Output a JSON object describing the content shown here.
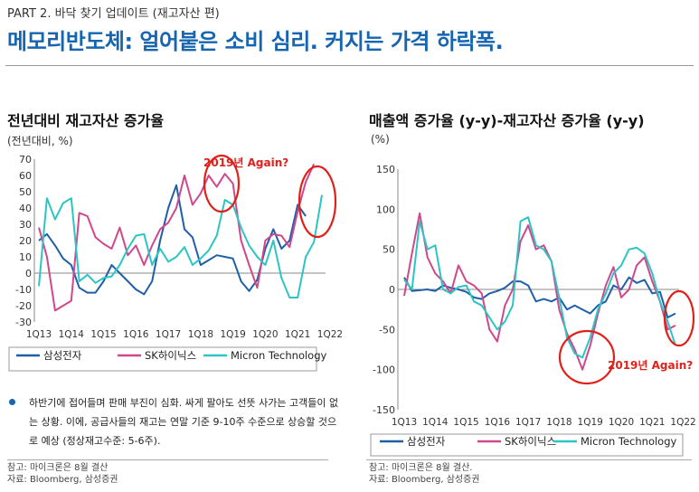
{
  "header": {
    "part": "PART 2. 바닥 찾기 업데이트 (재고자산 편)",
    "headline": "메모리반도체: 얼어붙은 소비 심리. 커지는 가격 하락폭."
  },
  "colors": {
    "samsung": "#1f5fa8",
    "skhynix": "#d0478c",
    "micron": "#2cc5c4",
    "annotation": "#e0201b",
    "accent": "#1565b0"
  },
  "chart_data": [
    {
      "type": "line",
      "title": "전년대비 재고자산 증가율",
      "ylabel": "(전년대비, %)",
      "ylim": [
        -30,
        70
      ],
      "yticks": [
        "-30",
        "-20",
        "-10",
        "0",
        "10",
        "20",
        "30",
        "40",
        "50",
        "60",
        "70"
      ],
      "xticks": [
        "1Q13",
        "1Q14",
        "1Q15",
        "1Q16",
        "1Q17",
        "1Q18",
        "1Q19",
        "1Q20",
        "1Q21",
        "1Q22"
      ],
      "grid": false,
      "legend": "bottom",
      "annotation": "2019년 Again?",
      "series": [
        {
          "name": "삼성전자",
          "values": [
            20,
            24,
            17,
            9,
            5,
            -9,
            -12,
            -12,
            -5,
            5,
            0,
            -5,
            -10,
            -13,
            -5,
            20,
            40,
            54,
            27,
            22,
            5,
            8,
            11,
            10,
            9,
            -5,
            -11,
            -4,
            15,
            27,
            15,
            20,
            42,
            35,
            null,
            null
          ]
        },
        {
          "name": "SK하이닉스",
          "values": [
            28,
            10,
            -23,
            -20,
            -17,
            37,
            35,
            22,
            18,
            15,
            28,
            11,
            17,
            5,
            17,
            27,
            31,
            40,
            60,
            42,
            49,
            60,
            53,
            61,
            55,
            20,
            5,
            -9,
            20,
            24,
            23,
            16,
            38,
            56,
            67,
            null
          ]
        },
        {
          "name": "Micron Technology",
          "values": [
            -8,
            46,
            33,
            43,
            46,
            -5,
            -1,
            -6,
            -3,
            -2,
            5,
            15,
            23,
            24,
            5,
            15,
            7,
            10,
            16,
            5,
            9,
            14,
            23,
            45,
            42,
            28,
            17,
            10,
            5,
            20,
            -3,
            -15,
            -15,
            10,
            19,
            48
          ]
        }
      ]
    },
    {
      "type": "line",
      "title": "매출액 증가율 (y-y)-재고자산 증가율 (y-y)",
      "ylabel": "(%)",
      "ylim": [
        -150,
        150
      ],
      "yticks": [
        "150",
        "100",
        "50",
        "0",
        "-50",
        "-100",
        "-150"
      ],
      "xticks": [
        "1Q13",
        "1Q14",
        "1Q15",
        "1Q16",
        "1Q17",
        "1Q18",
        "1Q19",
        "1Q20",
        "1Q21",
        "1Q22"
      ],
      "grid": false,
      "legend": "bottom",
      "annotation": "2019년 Again?",
      "series": [
        {
          "name": "삼성전자",
          "values": [
            15,
            -2,
            -1,
            0,
            -2,
            5,
            2,
            0,
            -3,
            -10,
            -12,
            -5,
            -2,
            2,
            10,
            10,
            5,
            -15,
            -12,
            -15,
            -10,
            -25,
            -20,
            -25,
            -30,
            -20,
            -15,
            5,
            0,
            15,
            8,
            12,
            -5,
            -3,
            -35,
            -30
          ]
        },
        {
          "name": "SK하이닉스",
          "values": [
            -8,
            45,
            95,
            40,
            20,
            10,
            -5,
            30,
            10,
            5,
            -5,
            -50,
            -65,
            -20,
            0,
            60,
            80,
            50,
            55,
            35,
            -25,
            -55,
            -75,
            -100,
            -70,
            -30,
            5,
            28,
            -10,
            0,
            30,
            40,
            10,
            -15,
            -50,
            -45
          ]
        },
        {
          "name": "Micron Technology",
          "values": [
            12,
            0,
            85,
            50,
            55,
            0,
            -5,
            3,
            5,
            -15,
            -20,
            -35,
            -50,
            -40,
            -20,
            85,
            90,
            55,
            50,
            35,
            -10,
            -60,
            -80,
            -85,
            -60,
            -25,
            -5,
            20,
            30,
            50,
            52,
            45,
            20,
            -15,
            -40,
            -70
          ]
        }
      ]
    }
  ],
  "footer": {
    "bullet": "하반기에 접어들며 판매 부진이 심화. 싸게 팔아도 선뜻 사가는 고객들이 없는 상황. 이에, 공급사들의 재고는 연말 기준 9-10주 수준으로 상승할 것으로 예상 (정상재고수준: 5-6주).",
    "note_left": "참고: 마이크론은 8월 결산",
    "source_left": "자료: Bloomberg, 삼성증권",
    "note_right": "참고: 마이크론은 8월 결산.",
    "source_right": "자료: Bloomberg, 삼성증권"
  }
}
